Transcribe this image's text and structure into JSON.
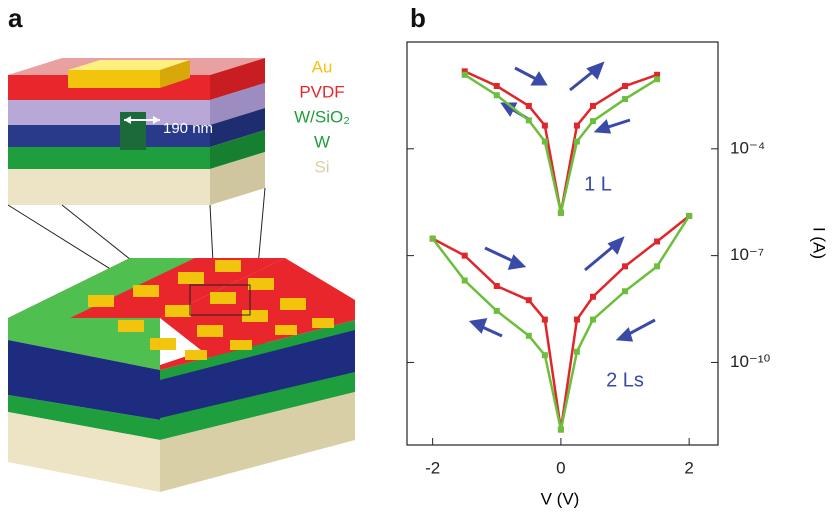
{
  "panel_labels": [
    "a",
    "b"
  ],
  "diagram": {
    "layers": [
      {
        "label": "Au",
        "color": "#f2c40e"
      },
      {
        "label": "PVDF",
        "color": "#e8262b"
      },
      {
        "label": "W/SiO₂",
        "color": "#1e9e3c"
      },
      {
        "label": "W",
        "color": "#1e9e3c"
      },
      {
        "label": "Si",
        "color": "#d8cfa6"
      }
    ],
    "dimension": "190 nm"
  },
  "chart_data": {
    "type": "line",
    "xlabel": "V (V)",
    "ylabel": "I (A)",
    "x": [
      -2,
      -1.5,
      -1,
      -0.5,
      -0.25,
      0,
      0.25,
      0.5,
      1,
      1.5,
      2
    ],
    "series": [
      {
        "color": "#e0262b",
        "values": [
          null,
          0.015,
          0.0058,
          0.0016,
          0.00045,
          1.6e-06,
          0.00045,
          0.0016,
          0.0058,
          0.012,
          null
        ]
      },
      {
        "color": "#6cbf3c",
        "values": [
          null,
          0.012,
          0.0032,
          0.00063,
          0.00016,
          1.6e-06,
          0.00016,
          0.0006,
          0.0025,
          0.009,
          null
        ]
      },
      {
        "color": "#e0262b",
        "values": [
          3e-07,
          1e-07,
          1.4e-08,
          5.6e-09,
          1.6e-09,
          1.3e-12,
          1.6e-09,
          7e-09,
          5e-08,
          2.5e-07,
          1.3e-06
        ]
      },
      {
        "color": "#6cbf3c",
        "values": [
          3e-07,
          2e-08,
          2.8e-09,
          5.6e-10,
          1.6e-10,
          1.3e-12,
          2e-10,
          1.6e-09,
          1e-08,
          5e-08,
          1.3e-06
        ]
      }
    ],
    "annotations": [
      "1 L",
      "2 Ls"
    ],
    "xlim": [
      -2.4,
      2.45
    ],
    "xticks": [
      -2,
      0,
      2
    ],
    "ylim": [
      0.1,
      4.8e-13
    ],
    "log_y": true,
    "y_axis_side": "right",
    "yticks": [
      {
        "value": 0.0001,
        "label": "10⁻⁴"
      },
      {
        "value": 1e-07,
        "label": "10⁻⁷"
      },
      {
        "value": 1e-10,
        "label": "10⁻¹⁰"
      }
    ]
  }
}
